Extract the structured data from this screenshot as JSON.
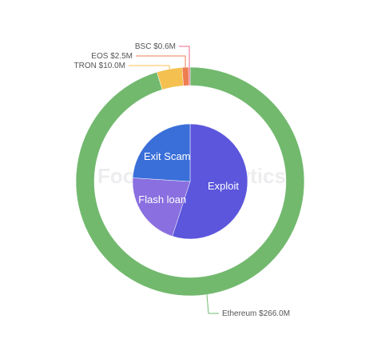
{
  "watermark": "Footprint Analytics",
  "chart_data": [
    {
      "type": "donut",
      "categories": [
        "Ethereum",
        "TRON",
        "EOS",
        "BSC"
      ],
      "values": [
        266.0,
        10.0,
        2.5,
        0.6
      ],
      "value_labels": [
        "$266.0M",
        "$10.0M",
        "$2.5M",
        "$0.6M"
      ],
      "colors": [
        "#72b96e",
        "#f4c150",
        "#ee7d4f",
        "#e56b8a"
      ]
    },
    {
      "type": "pie",
      "categories": [
        "Exploit",
        "Flash loan",
        "Exit Scam"
      ],
      "values": [
        55,
        21,
        24
      ],
      "colors": [
        "#5b56dc",
        "#8a6fe0",
        "#3a6fd9"
      ]
    }
  ]
}
